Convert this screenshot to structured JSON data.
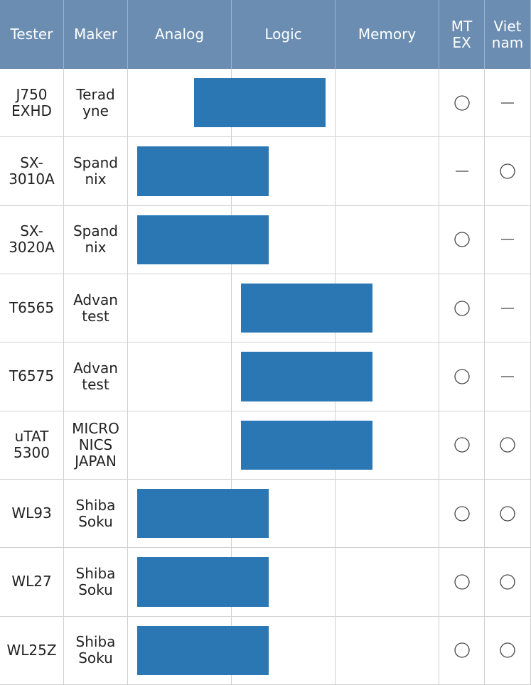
{
  "table": {
    "header": [
      "Tester",
      "Maker",
      "Analog",
      "Logic",
      "Memory",
      "MT\nEX",
      "Viet\nnam"
    ],
    "rows": [
      [
        "J750\nEXHD",
        "Terad\nyne"
      ],
      [
        "SX-\n3010A",
        "Spand\nnix"
      ],
      [
        "SX-\n3020A",
        "Spand\nnix"
      ],
      [
        "T6565",
        "Advan\ntest"
      ],
      [
        "T6575",
        "Advan\ntest"
      ],
      [
        "uTAT\n5300",
        "MICRO\nNICS\nJAPAN"
      ],
      [
        "WL93",
        "Shiba\nSoku"
      ],
      [
        "WL27",
        "Shiba\nSoku"
      ],
      [
        "WL25Z",
        "Shiba\nSoku"
      ]
    ]
  }
}
